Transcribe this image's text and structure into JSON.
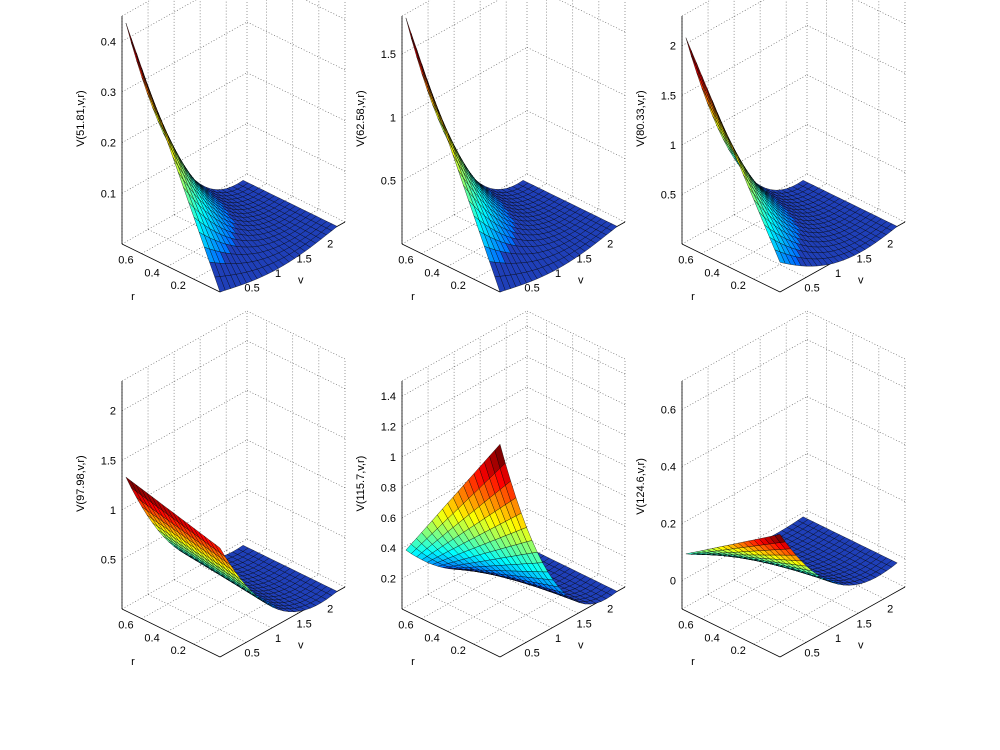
{
  "figure": {
    "background": "#ffffff",
    "colormap": "jet",
    "surface_color": "#1f3fb8"
  },
  "chart_data": [
    {
      "type": "surface",
      "zlabel": "V(51.81,v,r)",
      "xlabel": "v",
      "ylabel": "r",
      "x_ticks": [
        "0.5",
        "1",
        "1.5",
        "2"
      ],
      "y_ticks": [
        "0.2",
        "0.4",
        "0.6"
      ],
      "z_ticks": [
        "0.1",
        "0.2",
        "0.3",
        "0.4"
      ],
      "xlim": [
        0,
        2.4
      ],
      "ylim": [
        0,
        0.75
      ],
      "zlim": [
        0,
        0.45
      ],
      "grid": true,
      "corner_values": {
        "v_min_r_max": 0.44,
        "v_min_r_min": 0.0,
        "v_max_r_max": 0.0,
        "v_max_r_min": 0.0
      }
    },
    {
      "type": "surface",
      "zlabel": "V(62.58,v,r)",
      "xlabel": "v",
      "ylabel": "r",
      "x_ticks": [
        "0.5",
        "1",
        "1.5",
        "2"
      ],
      "y_ticks": [
        "0.2",
        "0.4",
        "0.6"
      ],
      "z_ticks": [
        "0.5",
        "1",
        "1.5"
      ],
      "xlim": [
        0,
        2.4
      ],
      "ylim": [
        0,
        0.75
      ],
      "zlim": [
        0,
        1.8
      ],
      "grid": true,
      "corner_values": {
        "v_min_r_max": 1.8,
        "v_min_r_min": 0.0,
        "v_max_r_max": 0.0,
        "v_max_r_min": 0.0
      }
    },
    {
      "type": "surface",
      "zlabel": "V(80.33,v,r)",
      "xlabel": "v",
      "ylabel": "r",
      "x_ticks": [
        "0.5",
        "1",
        "1.5",
        "2"
      ],
      "y_ticks": [
        "0.2",
        "0.4",
        "0.6"
      ],
      "z_ticks": [
        "0.5",
        "1",
        "1.5",
        "2"
      ],
      "xlim": [
        0,
        2.4
      ],
      "ylim": [
        0,
        0.75
      ],
      "zlim": [
        0,
        2.3
      ],
      "grid": true,
      "corner_values": {
        "v_min_r_max": 2.1,
        "v_min_r_min": 0.3,
        "v_max_r_max": 0.0,
        "v_max_r_min": 0.0
      }
    },
    {
      "type": "surface",
      "zlabel": "V(97.98,v,r)",
      "xlabel": "v",
      "ylabel": "r",
      "x_ticks": [
        "0.5",
        "1",
        "1.5",
        "2"
      ],
      "y_ticks": [
        "0.2",
        "0.4",
        "0.6"
      ],
      "z_ticks": [
        "0.5",
        "1",
        "1.5",
        "2"
      ],
      "xlim": [
        0,
        2.4
      ],
      "ylim": [
        0,
        0.75
      ],
      "zlim": [
        0,
        2.3
      ],
      "grid": true,
      "corner_values": {
        "v_min_r_max": 1.35,
        "v_min_r_min": 1.1,
        "v_max_r_max": 0.0,
        "v_max_r_min": 0.0
      }
    },
    {
      "type": "surface",
      "zlabel": "V(115.7,v,r)",
      "xlabel": "v",
      "ylabel": "r",
      "x_ticks": [
        "0.5",
        "1",
        "1.5",
        "2"
      ],
      "y_ticks": [
        "0.2",
        "0.4",
        "0.6"
      ],
      "z_ticks": [
        "0.2",
        "0.4",
        "0.6",
        "0.8",
        "1",
        "1.2",
        "1.4"
      ],
      "xlim": [
        0,
        2.4
      ],
      "ylim": [
        0,
        0.75
      ],
      "zlim": [
        0,
        1.5
      ],
      "grid": true,
      "corner_values": {
        "v_min_r_max": 0.4,
        "v_min_r_min": 1.4,
        "v_max_r_max": 0.0,
        "v_max_r_min": 0.0
      }
    },
    {
      "type": "surface",
      "zlabel": "V(124.6,v,r)",
      "xlabel": "v",
      "ylabel": "r",
      "x_ticks": [
        "0.5",
        "1",
        "1.5",
        "2"
      ],
      "y_ticks": [
        "0.2",
        "0.4",
        "0.6"
      ],
      "z_ticks": [
        "0",
        "0.2",
        "0.4",
        "0.6"
      ],
      "xlim": [
        0,
        2.4
      ],
      "ylim": [
        0,
        0.75
      ],
      "zlim": [
        -0.1,
        0.7
      ],
      "grid": true,
      "corner_values": {
        "v_min_r_max": 0.1,
        "v_min_r_min": 0.33,
        "v_max_r_max": 0.0,
        "v_max_r_min": 0.0
      }
    }
  ]
}
